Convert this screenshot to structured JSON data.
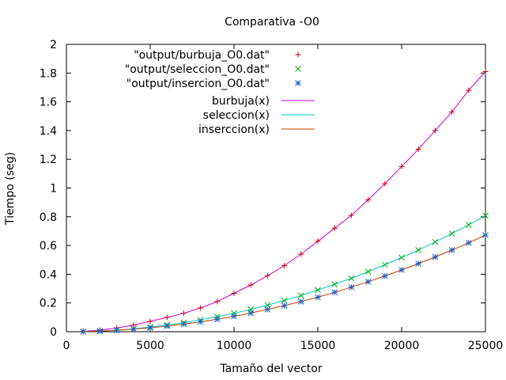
{
  "chart_data": {
    "type": "line",
    "title": "Comparativa -O0",
    "xlabel": "Tamaño del vector",
    "ylabel": "Tiempo (seg)",
    "xlim": [
      0,
      25000
    ],
    "ylim": [
      0,
      2
    ],
    "xticks": [
      0,
      5000,
      10000,
      15000,
      20000,
      25000
    ],
    "yticks": [
      0,
      0.2,
      0.4,
      0.6,
      0.8,
      1,
      1.2,
      1.4,
      1.6,
      1.8,
      2
    ],
    "grid": false,
    "legend_position": "top-left",
    "x": [
      1000,
      2000,
      3000,
      4000,
      5000,
      6000,
      7000,
      8000,
      9000,
      10000,
      11000,
      12000,
      13000,
      14000,
      15000,
      16000,
      17000,
      18000,
      19000,
      20000,
      21000,
      22000,
      23000,
      24000,
      25000
    ],
    "series": [
      {
        "name": "\"output/burbuja_O0.dat\"",
        "kind": "points",
        "marker": "plus",
        "color": "#cc0000",
        "values": [
          0.003,
          0.011,
          0.026,
          0.046,
          0.072,
          0.1,
          0.128,
          0.166,
          0.21,
          0.267,
          0.325,
          0.39,
          0.46,
          0.54,
          0.63,
          0.72,
          0.81,
          0.918,
          1.03,
          1.15,
          1.27,
          1.4,
          1.53,
          1.68,
          1.81
        ]
      },
      {
        "name": "\"output/seleccion_O0.dat\"",
        "kind": "points",
        "marker": "cross",
        "color": "#00b000",
        "values": [
          0.001,
          0.005,
          0.011,
          0.02,
          0.032,
          0.047,
          0.063,
          0.083,
          0.105,
          0.128,
          0.155,
          0.185,
          0.217,
          0.252,
          0.29,
          0.33,
          0.372,
          0.418,
          0.466,
          0.516,
          0.568,
          0.625,
          0.683,
          0.743,
          0.808
        ]
      },
      {
        "name": "\"output/insercion_O0.dat\"",
        "kind": "points",
        "marker": "star",
        "color": "#1a64c8",
        "values": [
          0.001,
          0.004,
          0.01,
          0.018,
          0.027,
          0.039,
          0.053,
          0.069,
          0.087,
          0.107,
          0.13,
          0.155,
          0.182,
          0.21,
          0.24,
          0.274,
          0.31,
          0.348,
          0.388,
          0.43,
          0.474,
          0.52,
          0.568,
          0.618,
          0.672
        ]
      },
      {
        "name": "burbuja(x)",
        "kind": "line",
        "color": "#cc00cc",
        "values": [
          0.003,
          0.011,
          0.026,
          0.046,
          0.072,
          0.1,
          0.128,
          0.166,
          0.21,
          0.267,
          0.325,
          0.39,
          0.46,
          0.54,
          0.63,
          0.72,
          0.81,
          0.918,
          1.03,
          1.15,
          1.27,
          1.4,
          1.53,
          1.68,
          1.81
        ]
      },
      {
        "name": "seleccion(x)",
        "kind": "line",
        "color": "#00c8c8",
        "values": [
          0.001,
          0.005,
          0.011,
          0.02,
          0.032,
          0.047,
          0.063,
          0.083,
          0.105,
          0.128,
          0.155,
          0.185,
          0.217,
          0.252,
          0.29,
          0.33,
          0.372,
          0.418,
          0.466,
          0.516,
          0.568,
          0.625,
          0.683,
          0.743,
          0.808
        ]
      },
      {
        "name": "inserccion(x)",
        "kind": "line",
        "color": "#c84000",
        "values": [
          0.001,
          0.004,
          0.01,
          0.018,
          0.027,
          0.039,
          0.053,
          0.069,
          0.087,
          0.107,
          0.13,
          0.155,
          0.182,
          0.21,
          0.24,
          0.274,
          0.31,
          0.348,
          0.388,
          0.43,
          0.474,
          0.52,
          0.568,
          0.618,
          0.672
        ]
      }
    ]
  }
}
